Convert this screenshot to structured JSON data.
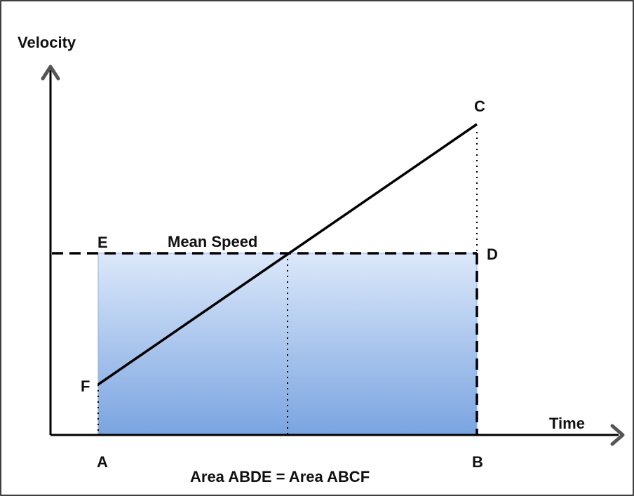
{
  "axes": {
    "y_label": "Velocity",
    "x_label": "Time"
  },
  "points": {
    "A": "A",
    "B": "B",
    "C": "C",
    "D": "D",
    "E": "E",
    "F": "F"
  },
  "annotations": {
    "mean_speed": "Mean Speed",
    "area_equation": "Area ABDE = Area ABCF"
  },
  "colors": {
    "frame_border": "#000000",
    "lines": "#000000",
    "axes": "#000000",
    "arrows": "#555555",
    "fill_top": "#dce8fa",
    "fill_bottom": "#7aa4e0",
    "fill_edge": "#8fb2e6"
  }
}
